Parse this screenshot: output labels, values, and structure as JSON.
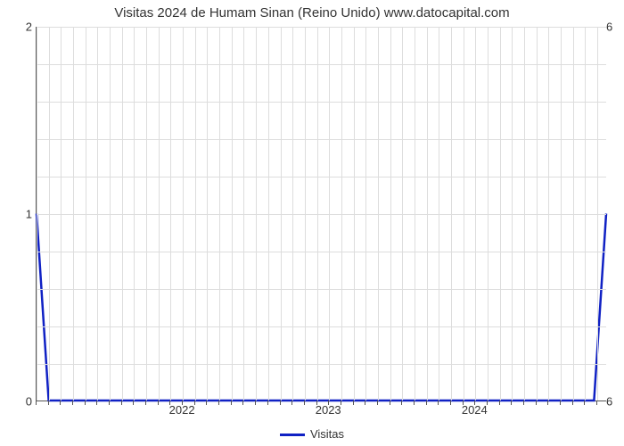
{
  "chart": {
    "type": "line",
    "title": "Visitas 2024 de Humam Sinan (Reino Unido) www.datocapital.com",
    "title_fontsize": 15,
    "title_color": "#333333",
    "background_color": "#ffffff",
    "plot_border_color": "#555555",
    "grid_color": "#dddddd",
    "xlim": [
      2021.0,
      2024.9
    ],
    "ylim": [
      0,
      2
    ],
    "ytick_step": 1,
    "y_minor_per_major": 5,
    "y_major_labels": [
      "0",
      "1",
      "2"
    ],
    "secondary_y_labels": [
      "6",
      "6"
    ],
    "x_major_ticks": [
      2022,
      2023,
      2024
    ],
    "x_major_labels": [
      "2022",
      "2023",
      "2024"
    ],
    "x_minor_count_between": 11,
    "series": {
      "name": "Visitas",
      "color": "#1021c4",
      "line_width": 2.5,
      "x": [
        2021.0,
        2021.083,
        2024.817,
        2024.9
      ],
      "y": [
        1.0,
        0.0,
        0.0,
        1.0
      ]
    },
    "legend_label": "Visitas",
    "label_fontsize": 13
  }
}
